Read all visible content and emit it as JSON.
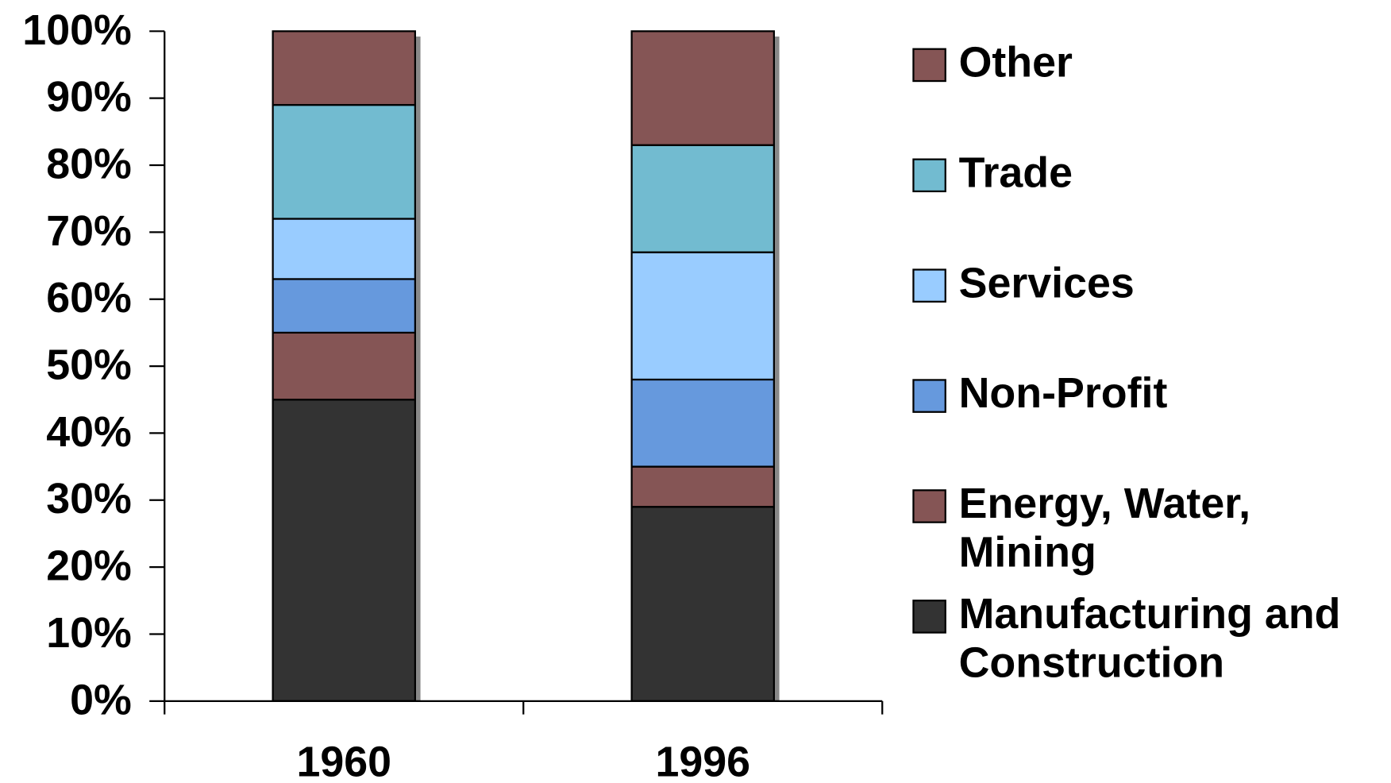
{
  "chart_data": {
    "type": "stacked_bar",
    "categories": [
      "1960",
      "1996"
    ],
    "series": [
      {
        "name": "Manufacturing and Construction",
        "color": "#333333",
        "values": [
          45,
          29
        ]
      },
      {
        "name": "Energy, Water, Mining",
        "color": "#855555",
        "values": [
          10,
          6
        ]
      },
      {
        "name": "Non-Profit",
        "color": "#6699dd",
        "values": [
          8,
          13
        ]
      },
      {
        "name": "Services",
        "color": "#99ccff",
        "values": [
          9,
          19
        ]
      },
      {
        "name": "Trade",
        "color": "#72bbd0",
        "values": [
          17,
          16
        ]
      },
      {
        "name": "Other",
        "color": "#855555",
        "values": [
          11,
          17
        ]
      }
    ],
    "ylim": [
      0,
      100
    ],
    "yticks": [
      {
        "value": 0,
        "label": "0%"
      },
      {
        "value": 10,
        "label": "10%"
      },
      {
        "value": 20,
        "label": "20%"
      },
      {
        "value": 30,
        "label": "30%"
      },
      {
        "value": 40,
        "label": "40%"
      },
      {
        "value": 50,
        "label": "50%"
      },
      {
        "value": 60,
        "label": "60%"
      },
      {
        "value": 70,
        "label": "70%"
      },
      {
        "value": 80,
        "label": "80%"
      },
      {
        "value": 90,
        "label": "90%"
      },
      {
        "value": 100,
        "label": "100%"
      }
    ],
    "legend": "right"
  }
}
